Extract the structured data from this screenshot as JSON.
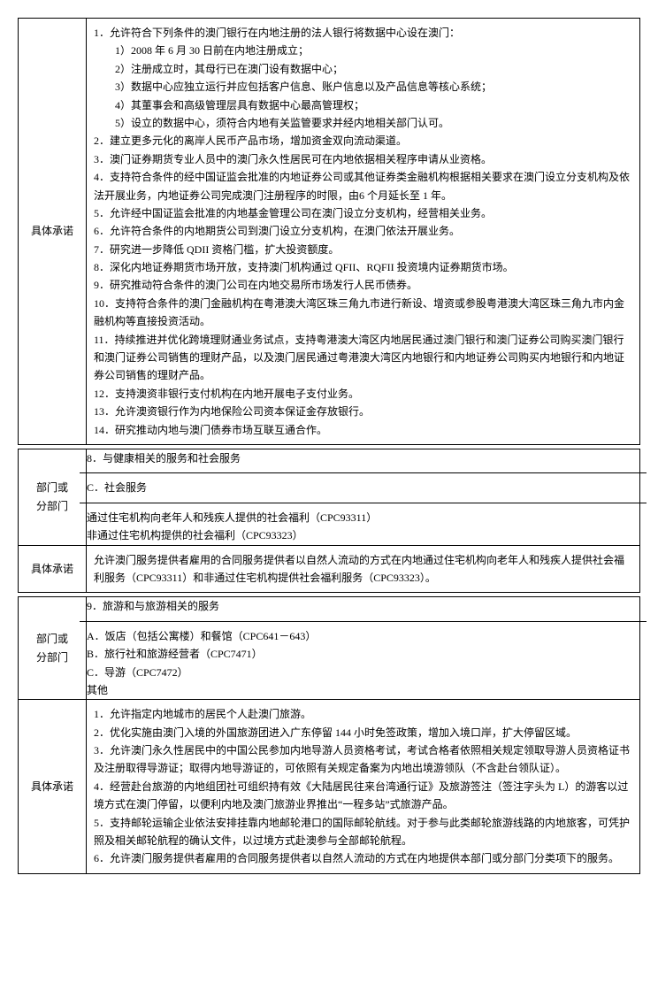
{
  "labels": {
    "commitment": "具体承诺",
    "sector": "部门或\n分部门"
  },
  "block1": {
    "content": "1．允许符合下列条件的澳门银行在内地注册的法人银行将数据中心设在澳门：\n　　1）2008 年 6 月 30 日前在内地注册成立；\n　　2）注册成立时，其母行已在澳门设有数据中心；\n　　3）数据中心应独立运行并应包括客户信息、账户信息以及产品信息等核心系统；\n　　4）其董事会和高级管理层具有数据中心最高管理权；\n　　5）设立的数据中心，须符合内地有关监管要求并经内地相关部门认可。\n2．建立更多元化的离岸人民币产品市场，增加资金双向流动渠道。\n3．澳门证券期货专业人员中的澳门永久性居民可在内地依据相关程序申请从业资格。\n4．支持符合条件的经中国证监会批准的内地证券公司或其他证券类金融机构根据相关要求在澳门设立分支机构及依法开展业务，内地证券公司完成澳门注册程序的时限，由6 个月延长至 1 年。\n5．允许经中国证监会批准的内地基金管理公司在澳门设立分支机构，经营相关业务。\n6．允许符合条件的内地期货公司到澳门设立分支机构，在澳门依法开展业务。\n7．研究进一步降低 QDII 资格门槛，扩大投资额度。\n8．深化内地证券期货市场开放，支持澳门机构通过 QFII、RQFII 投资境内证券期货市场。\n9．研究推动符合条件的澳门公司在内地交易所市场发行人民币债券。\n10．支持符合条件的澳门金融机构在粤港澳大湾区珠三角九市进行新设、增资或参股粤港澳大湾区珠三角九市内金融机构等直接投资活动。\n11．持续推进并优化跨境理财通业务试点，支持粤港澳大湾区内地居民通过澳门银行和澳门证券公司购买澳门银行和澳门证券公司销售的理财产品，以及澳门居民通过粤港澳大湾区内地银行和内地证券公司购买内地银行和内地证券公司销售的理财产品。\n12．支持澳资非银行支付机构在内地开展电子支付业务。\n13．允许澳资银行作为内地保险公司资本保证金存放银行。\n14．研究推动内地与澳门债券市场互联互通合作。"
  },
  "block2": {
    "sector_row1": "8．与健康相关的服务和社会服务",
    "sector_row2": "C．社会服务",
    "sector_row3": "通过住宅机构向老年人和残疾人提供的社会福利（CPC93311）\n非通过住宅机构提供的社会福利（CPC93323）",
    "commitment": "允许澳门服务提供者雇用的合同服务提供者以自然人流动的方式在内地通过住宅机构向老年人和残疾人提供社会福利服务（CPC93311）和非通过住宅机构提供社会福利服务（CPC93323）。"
  },
  "block3": {
    "sector_row1": "9．旅游和与旅游相关的服务",
    "sector_row2": "A．饭店（包括公寓楼）和餐馆（CPC641－643）\nB．旅行社和旅游经营者（CPC7471）\nC．导游（CPC7472）\n其他",
    "commitment": "1．允许指定内地城市的居民个人赴澳门旅游。\n2．优化实施由澳门入境的外国旅游团进入广东停留 144 小时免签政策，增加入境口岸，扩大停留区域。\n3．允许澳门永久性居民中的中国公民参加内地导游人员资格考试，考试合格者依照相关规定领取导游人员资格证书及注册取得导游证；取得内地导游证的，可依照有关规定备案为内地出境游领队（不含赴台领队证）。\n4．经营赴台旅游的内地组团社可组织持有效《大陆居民往来台湾通行证》及旅游签注（签注字头为 L）的游客以过境方式在澳门停留，以便利内地及澳门旅游业界推出“一程多站”式旅游产品。\n5．支持邮轮运输企业依法安排挂靠内地邮轮港口的国际邮轮航线。对于参与此类邮轮旅游线路的内地旅客，可凭护照及相关邮轮航程的确认文件，以过境方式赴澳参与全部邮轮航程。\n6．允许澳门服务提供者雇用的合同服务提供者以自然人流动的方式在内地提供本部门或分部门分类项下的服务。"
  }
}
